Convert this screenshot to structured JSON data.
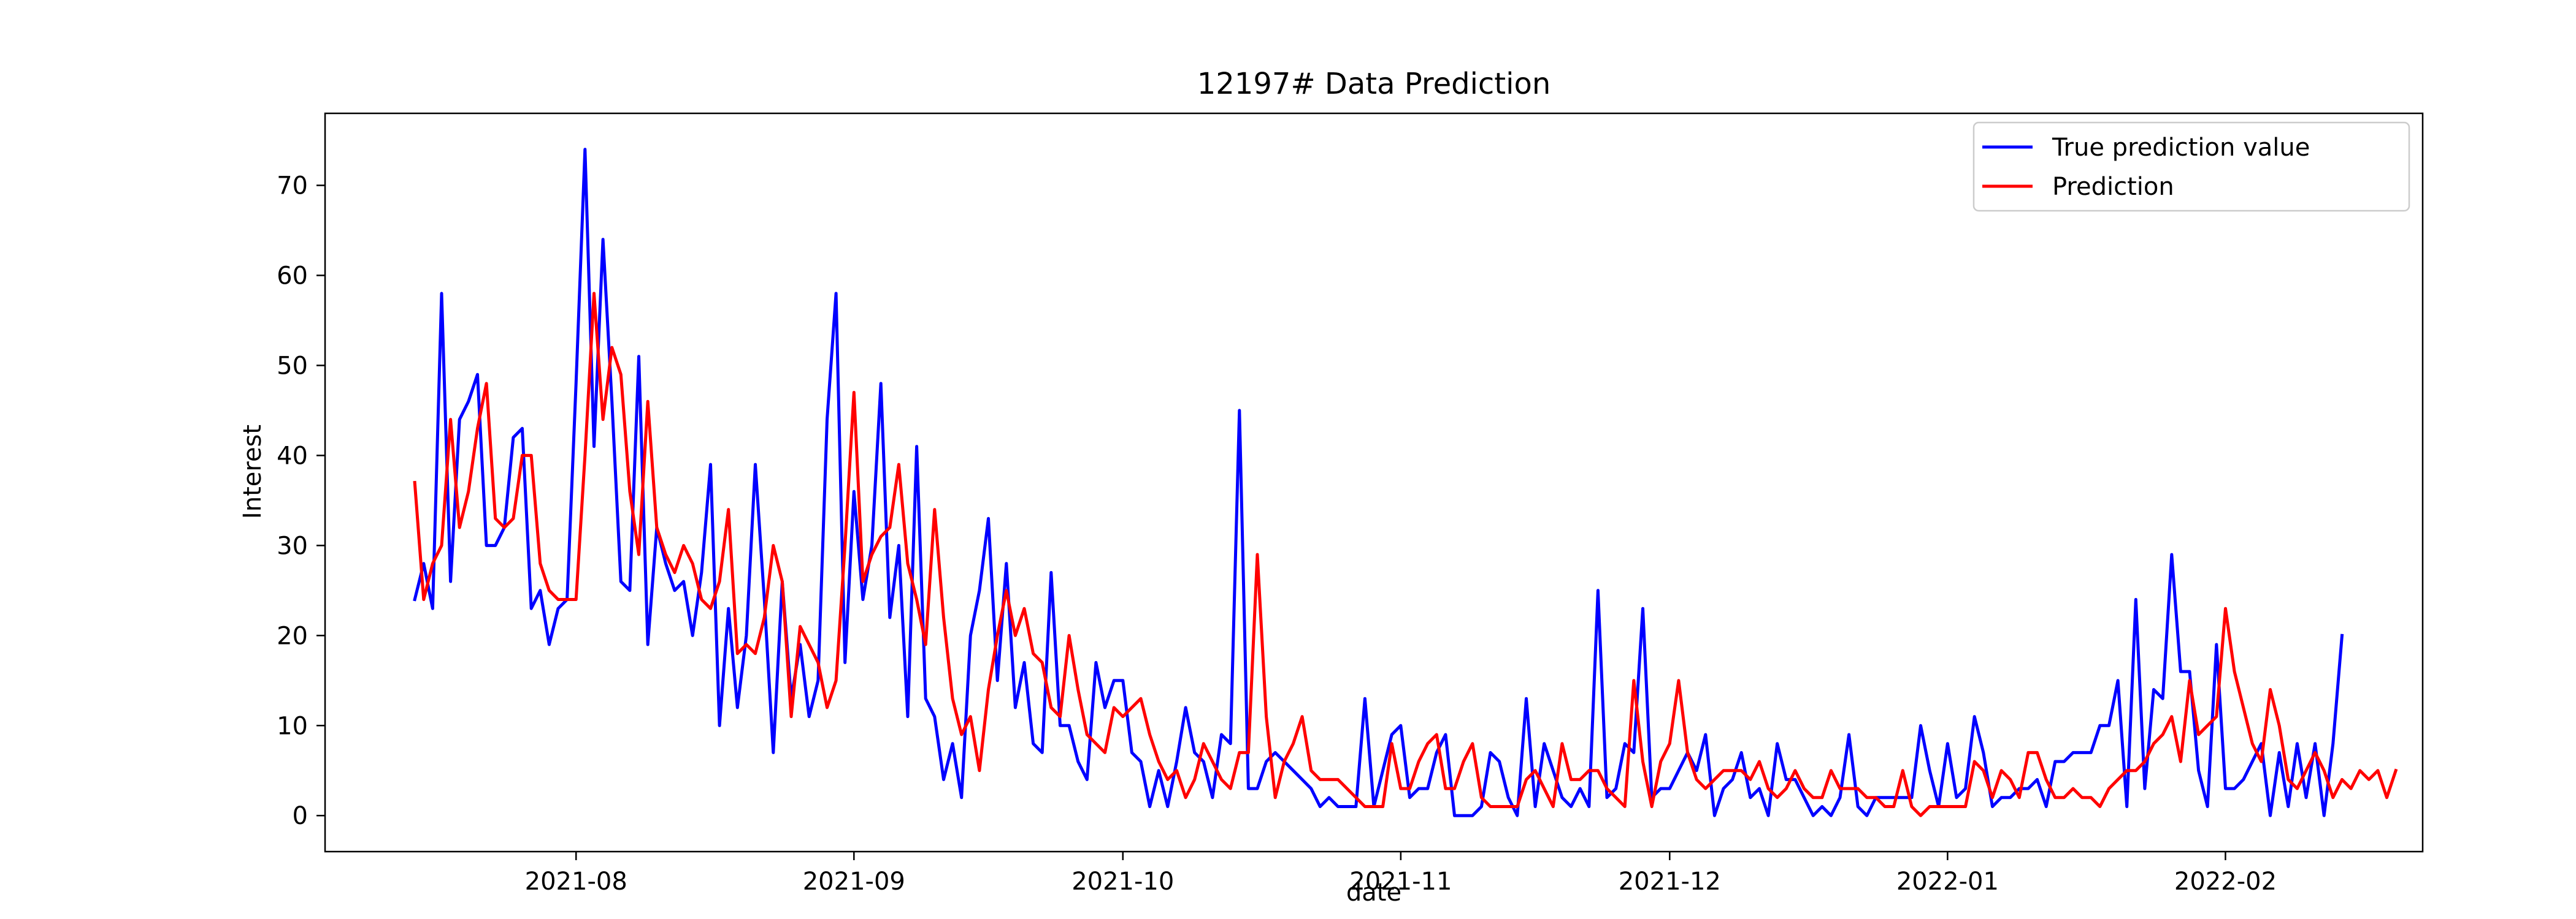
{
  "chart_data": {
    "type": "line",
    "title": "12197# Data Prediction",
    "xlabel": "date",
    "ylabel": "Interest",
    "x_start": "2021-07-14",
    "x_end": "2022-02-13",
    "xlim": [
      "2021-07-04",
      "2022-02-23"
    ],
    "ylim": [
      -4,
      78
    ],
    "x_ticks": [
      "2021-08",
      "2021-09",
      "2021-10",
      "2021-11",
      "2021-12",
      "2022-01",
      "2022-02"
    ],
    "y_ticks": [
      0,
      10,
      20,
      30,
      40,
      50,
      60,
      70
    ],
    "grid": false,
    "legend_position": "top-right",
    "series": [
      {
        "name": "True prediction value",
        "color": "#0000ff",
        "values": [
          24,
          28,
          23,
          58,
          26,
          44,
          46,
          49,
          30,
          30,
          32,
          42,
          43,
          23,
          25,
          19,
          23,
          24,
          48,
          74,
          41,
          64,
          46,
          26,
          25,
          51,
          19,
          32,
          28,
          25,
          26,
          20,
          27,
          39,
          10,
          23,
          12,
          20,
          39,
          24,
          7,
          26,
          13,
          19,
          11,
          15,
          44,
          58,
          17,
          36,
          24,
          30,
          48,
          22,
          30,
          11,
          41,
          13,
          11,
          4,
          8,
          2,
          20,
          25,
          33,
          15,
          28,
          12,
          17,
          8,
          7,
          27,
          10,
          10,
          6,
          4,
          17,
          12,
          15,
          15,
          7,
          6,
          1,
          5,
          1,
          6,
          12,
          7,
          6,
          2,
          9,
          8,
          45,
          3,
          3,
          6,
          7,
          6,
          5,
          4,
          3,
          1,
          2,
          1,
          1,
          1,
          13,
          1,
          5,
          9,
          10,
          2,
          3,
          3,
          7,
          9,
          0,
          0,
          0,
          1,
          7,
          6,
          2,
          0,
          13,
          1,
          8,
          5,
          2,
          1,
          3,
          1,
          25,
          2,
          3,
          8,
          7,
          23,
          2,
          3,
          3,
          5,
          7,
          5,
          9,
          0,
          3,
          4,
          7,
          2,
          3,
          0,
          8,
          4,
          4,
          2,
          0,
          1,
          0,
          2,
          9,
          1,
          0,
          2,
          2,
          2,
          2,
          2,
          10,
          5,
          1,
          8,
          2,
          3,
          11,
          7,
          1,
          2,
          2,
          3,
          3,
          4,
          1,
          6,
          6,
          7,
          7,
          7,
          10,
          10,
          15,
          1,
          24,
          3,
          14,
          13,
          29,
          16,
          16,
          5,
          1,
          19,
          3,
          3,
          4,
          6,
          8,
          0,
          7,
          1,
          8,
          2,
          8,
          0,
          8,
          20
        ]
      },
      {
        "name": "Prediction",
        "color": "#ff0000",
        "values": [
          37,
          24,
          28,
          30,
          44,
          32,
          36,
          43,
          48,
          33,
          32,
          33,
          40,
          40,
          28,
          25,
          24,
          24,
          24,
          40,
          58,
          44,
          52,
          49,
          36,
          29,
          46,
          32,
          29,
          27,
          30,
          28,
          24,
          23,
          26,
          34,
          18,
          19,
          18,
          22,
          30,
          26,
          11,
          21,
          19,
          17,
          12,
          15,
          30,
          47,
          26,
          29,
          31,
          32,
          39,
          28,
          24,
          19,
          34,
          22,
          13,
          9,
          11,
          5,
          14,
          20,
          25,
          20,
          23,
          18,
          17,
          12,
          11,
          20,
          14,
          9,
          8,
          7,
          12,
          11,
          12,
          13,
          9,
          6,
          4,
          5,
          2,
          4,
          8,
          6,
          4,
          3,
          7,
          7,
          29,
          11,
          2,
          6,
          8,
          11,
          5,
          4,
          4,
          4,
          3,
          2,
          1,
          1,
          1,
          8,
          3,
          3,
          6,
          8,
          9,
          3,
          3,
          6,
          8,
          2,
          1,
          1,
          1,
          1,
          4,
          5,
          3,
          1,
          8,
          4,
          4,
          5,
          5,
          3,
          2,
          1,
          15,
          6,
          1,
          6,
          8,
          15,
          7,
          4,
          3,
          4,
          5,
          5,
          5,
          4,
          6,
          3,
          2,
          3,
          5,
          3,
          2,
          2,
          5,
          3,
          3,
          3,
          2,
          2,
          1,
          1,
          5,
          1,
          0,
          1,
          1,
          1,
          1,
          1,
          6,
          5,
          2,
          5,
          4,
          2,
          7,
          7,
          4,
          2,
          2,
          3,
          2,
          2,
          1,
          3,
          4,
          5,
          5,
          6,
          8,
          9,
          11,
          6,
          15,
          9,
          10,
          11,
          23,
          16,
          12,
          8,
          6,
          14,
          10,
          4,
          3,
          5,
          7,
          5,
          2,
          4,
          3,
          5,
          4,
          5,
          2,
          5
        ]
      }
    ]
  }
}
